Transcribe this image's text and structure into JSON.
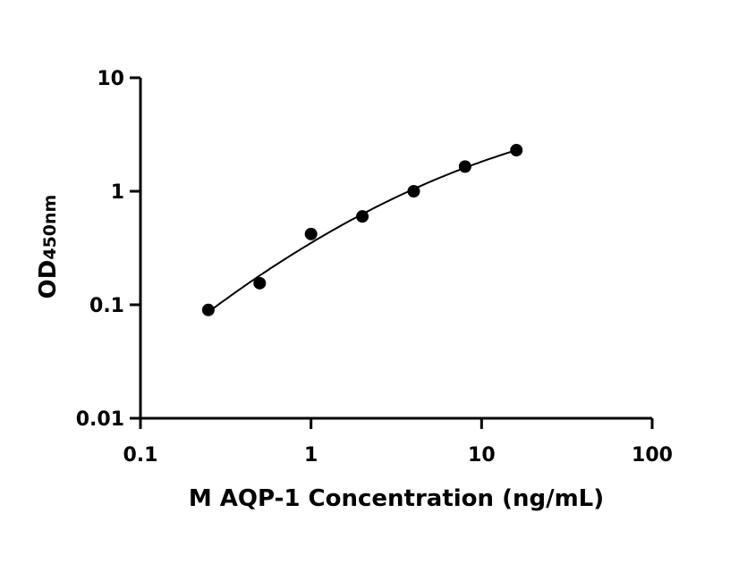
{
  "chart_data": {
    "type": "scatter",
    "xlabel": "M AQP-1 Concentration (ng/mL)",
    "ylabel": {
      "main": "OD",
      "subscript": "450nm"
    },
    "x_scale": "log",
    "y_scale": "log",
    "xlim": [
      0.1,
      100
    ],
    "ylim": [
      0.01,
      10
    ],
    "x_ticks": [
      {
        "value": 0.1,
        "label": "0.1"
      },
      {
        "value": 1,
        "label": "1"
      },
      {
        "value": 10,
        "label": "10"
      },
      {
        "value": 100,
        "label": "100"
      }
    ],
    "y_ticks": [
      {
        "value": 0.01,
        "label": "0.01"
      },
      {
        "value": 0.1,
        "label": "0.1"
      },
      {
        "value": 1,
        "label": "1"
      },
      {
        "value": 10,
        "label": "10"
      }
    ],
    "series": [
      {
        "points": [
          {
            "x": 0.25,
            "y": 0.09
          },
          {
            "x": 0.5,
            "y": 0.155
          },
          {
            "x": 1,
            "y": 0.42
          },
          {
            "x": 2,
            "y": 0.6
          },
          {
            "x": 4,
            "y": 1.0
          },
          {
            "x": 8,
            "y": 1.65
          },
          {
            "x": 16,
            "y": 2.3
          }
        ],
        "fit_curve": true,
        "color": "#000000"
      }
    ],
    "grid": false,
    "legend": "none"
  }
}
